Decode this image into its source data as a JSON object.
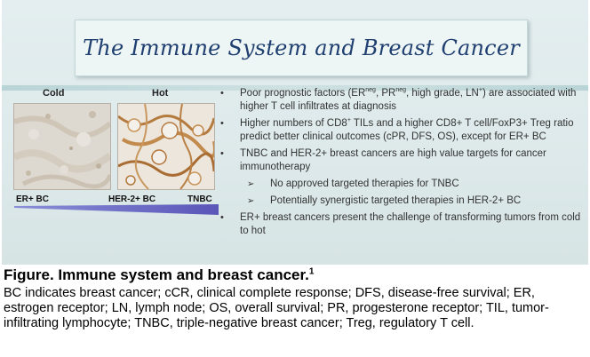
{
  "slide": {
    "title": "The Immune System and Breast Cancer",
    "columns": {
      "cold": "Cold",
      "hot": "Hot"
    },
    "row_labels": {
      "er_bc": "ER+ BC",
      "her2_bc": "HER-2+ BC",
      "tnbc": "TNBC"
    },
    "bullets": {
      "b1": {
        "part1": "Poor prognostic factors (ER",
        "sup1": "neg",
        "part2": ", PR",
        "sup2": "neg",
        "part3": ", high grade, LN",
        "sup3": "+",
        "part4": ")  are associated with higher T cell infiltrates at diagnosis"
      },
      "b2": {
        "part1": "Higher numbers of CD8",
        "sup1": "+",
        "part2": " TILs and a higher CD8+ T cell/FoxP3+ Treg ratio predict better clinical outcomes (cPR, DFS, OS), except for ER+ BC"
      },
      "b3": "TNBC and HER-2+ breast cancers are high value targets for cancer immunotherapy",
      "sub1": "No approved targeted therapies for TNBC",
      "sub2": "Potentially synergistic targeted therapies in HER-2+ BC",
      "b4": "ER+ breast cancers present the challenge of transforming tumors from cold to hot"
    }
  },
  "caption": {
    "title": "Figure. Immune system and breast cancer.",
    "ref": "1",
    "body": "BC indicates breast cancer; cCR, clinical complete response; DFS, disease-free survival; ER, estrogen receptor; LN, lymph node; OS, overall survival; PR, progesterone receptor; TIL, tumor-infiltrating lymphocyte; TNBC, triple-negative breast cancer; Treg, regulatory T cell."
  }
}
